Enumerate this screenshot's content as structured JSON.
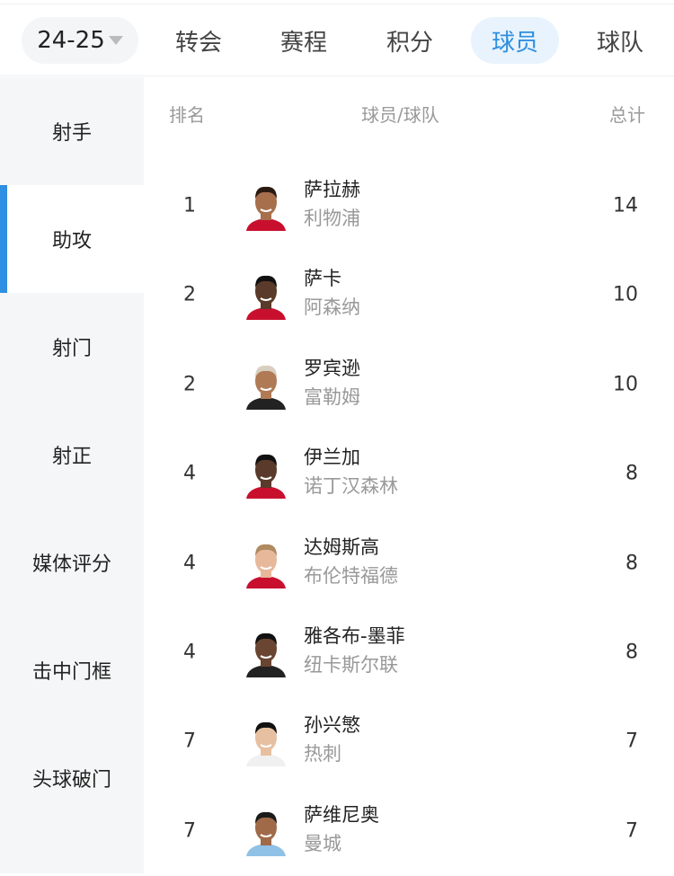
{
  "top": {
    "season": "24-25",
    "tabs": [
      {
        "label": "转会"
      },
      {
        "label": "赛程"
      },
      {
        "label": "积分"
      },
      {
        "label": "球员",
        "active": true
      },
      {
        "label": "球队"
      }
    ]
  },
  "accent": "#2f8fe0",
  "sidebar": {
    "items": [
      {
        "label": "射手"
      },
      {
        "label": "助攻",
        "active": true
      },
      {
        "label": "射门"
      },
      {
        "label": "射正"
      },
      {
        "label": "媒体评分"
      },
      {
        "label": "击中门框"
      },
      {
        "label": "头球破门"
      }
    ]
  },
  "table": {
    "headers": {
      "rank": "排名",
      "player": "球员/球队",
      "total": "总计"
    },
    "rows": [
      {
        "rank": "1",
        "name": "萨拉赫",
        "team": "利物浦",
        "total": "14",
        "skin": "#a86f4c",
        "hair": "#2a1a12",
        "shirt": "#c8102e"
      },
      {
        "rank": "2",
        "name": "萨卡",
        "team": "阿森纳",
        "total": "10",
        "skin": "#5a3a2a",
        "hair": "#111111",
        "shirt": "#c8102e"
      },
      {
        "rank": "2",
        "name": "罗宾逊",
        "team": "富勒姆",
        "total": "10",
        "skin": "#b07a55",
        "hair": "#d9cfc0",
        "shirt": "#222222"
      },
      {
        "rank": "4",
        "name": "伊兰加",
        "team": "诺丁汉森林",
        "total": "8",
        "skin": "#5a3a2a",
        "hair": "#111111",
        "shirt": "#c8102e"
      },
      {
        "rank": "4",
        "name": "达姆斯高",
        "team": "布伦特福德",
        "total": "8",
        "skin": "#e8b89a",
        "hair": "#b08a60",
        "shirt": "#c8102e"
      },
      {
        "rank": "4",
        "name": "雅各布-墨菲",
        "team": "纽卡斯尔联",
        "total": "8",
        "skin": "#6a4532",
        "hair": "#111111",
        "shirt": "#222222"
      },
      {
        "rank": "7",
        "name": "孙兴慜",
        "team": "热刺",
        "total": "7",
        "skin": "#e6c0a0",
        "hair": "#111111",
        "shirt": "#f0f0f0"
      },
      {
        "rank": "7",
        "name": "萨维尼奥",
        "team": "曼城",
        "total": "7",
        "skin": "#a06a48",
        "hair": "#1a1a1a",
        "shirt": "#8fc1e6"
      }
    ]
  }
}
